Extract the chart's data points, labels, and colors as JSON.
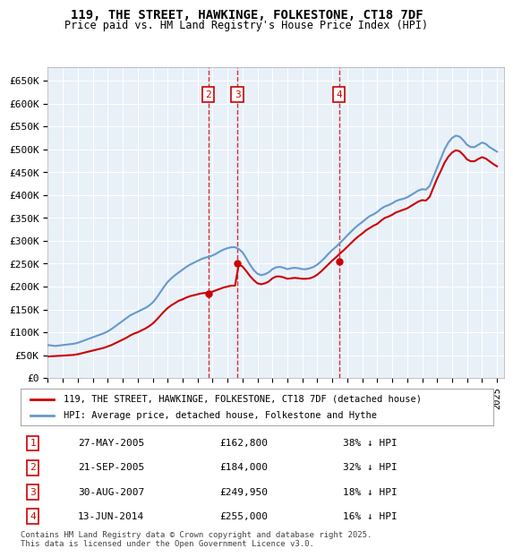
{
  "title_line1": "119, THE STREET, HAWKINGE, FOLKESTONE, CT18 7DF",
  "title_line2": "Price paid vs. HM Land Registry's House Price Index (HPI)",
  "ylabel": "",
  "ylim": [
    0,
    680000
  ],
  "yticks": [
    0,
    50000,
    100000,
    150000,
    200000,
    250000,
    300000,
    350000,
    400000,
    450000,
    500000,
    550000,
    600000,
    650000
  ],
  "ytick_labels": [
    "£0",
    "£50K",
    "£100K",
    "£150K",
    "£200K",
    "£250K",
    "£300K",
    "£350K",
    "£400K",
    "£450K",
    "£500K",
    "£550K",
    "£600K",
    "£650K"
  ],
  "xlim_start": 1995.0,
  "xlim_end": 2025.5,
  "background_color": "#ffffff",
  "plot_background": "#e8f0f8",
  "grid_color": "#ffffff",
  "hpi_color": "#6699cc",
  "price_color": "#cc0000",
  "transaction_color": "#cc0000",
  "annotation_box_color": "#cc0000",
  "dashed_line_color": "#cc0000",
  "legend_box_color": "#dddddd",
  "footer_text": "Contains HM Land Registry data © Crown copyright and database right 2025.\nThis data is licensed under the Open Government Licence v3.0.",
  "transactions": [
    {
      "label": "1",
      "date": "27-MAY-2005",
      "price": 162800,
      "pct": "38%",
      "year": 2005.4,
      "show_on_chart": false
    },
    {
      "label": "2",
      "date": "21-SEP-2005",
      "price": 184000,
      "pct": "32%",
      "year": 2005.72,
      "show_on_chart": true
    },
    {
      "label": "3",
      "date": "30-AUG-2007",
      "price": 249950,
      "pct": "18%",
      "year": 2007.66,
      "show_on_chart": true
    },
    {
      "label": "4",
      "date": "13-JUN-2014",
      "price": 255000,
      "pct": "16%",
      "year": 2014.45,
      "show_on_chart": true
    }
  ],
  "hpi_data_x": [
    1995.0,
    1995.25,
    1995.5,
    1995.75,
    1996.0,
    1996.25,
    1996.5,
    1996.75,
    1997.0,
    1997.25,
    1997.5,
    1997.75,
    1998.0,
    1998.25,
    1998.5,
    1998.75,
    1999.0,
    1999.25,
    1999.5,
    1999.75,
    2000.0,
    2000.25,
    2000.5,
    2000.75,
    2001.0,
    2001.25,
    2001.5,
    2001.75,
    2002.0,
    2002.25,
    2002.5,
    2002.75,
    2003.0,
    2003.25,
    2003.5,
    2003.75,
    2004.0,
    2004.25,
    2004.5,
    2004.75,
    2005.0,
    2005.25,
    2005.5,
    2005.75,
    2006.0,
    2006.25,
    2006.5,
    2006.75,
    2007.0,
    2007.25,
    2007.5,
    2007.75,
    2008.0,
    2008.25,
    2008.5,
    2008.75,
    2009.0,
    2009.25,
    2009.5,
    2009.75,
    2010.0,
    2010.25,
    2010.5,
    2010.75,
    2011.0,
    2011.25,
    2011.5,
    2011.75,
    2012.0,
    2012.25,
    2012.5,
    2012.75,
    2013.0,
    2013.25,
    2013.5,
    2013.75,
    2014.0,
    2014.25,
    2014.5,
    2014.75,
    2015.0,
    2015.25,
    2015.5,
    2015.75,
    2016.0,
    2016.25,
    2016.5,
    2016.75,
    2017.0,
    2017.25,
    2017.5,
    2017.75,
    2018.0,
    2018.25,
    2018.5,
    2018.75,
    2019.0,
    2019.25,
    2019.5,
    2019.75,
    2020.0,
    2020.25,
    2020.5,
    2020.75,
    2021.0,
    2021.25,
    2021.5,
    2021.75,
    2022.0,
    2022.25,
    2022.5,
    2022.75,
    2023.0,
    2023.25,
    2023.5,
    2023.75,
    2024.0,
    2024.25,
    2024.5,
    2024.75,
    2025.0
  ],
  "hpi_data_y": [
    72000,
    71000,
    70000,
    71000,
    72000,
    73000,
    74000,
    75000,
    77000,
    80000,
    83000,
    86000,
    89000,
    92000,
    95000,
    98000,
    102000,
    107000,
    113000,
    119000,
    125000,
    131000,
    137000,
    141000,
    145000,
    149000,
    153000,
    158000,
    165000,
    175000,
    187000,
    199000,
    210000,
    218000,
    225000,
    231000,
    237000,
    243000,
    248000,
    252000,
    256000,
    260000,
    263000,
    265000,
    268000,
    272000,
    277000,
    281000,
    284000,
    286000,
    286000,
    282000,
    275000,
    262000,
    248000,
    236000,
    228000,
    225000,
    227000,
    231000,
    238000,
    242000,
    243000,
    241000,
    238000,
    240000,
    241000,
    240000,
    238000,
    238000,
    240000,
    243000,
    248000,
    255000,
    263000,
    272000,
    280000,
    287000,
    295000,
    303000,
    312000,
    320000,
    328000,
    335000,
    341000,
    348000,
    354000,
    358000,
    363000,
    370000,
    375000,
    378000,
    382000,
    387000,
    390000,
    392000,
    395000,
    400000,
    405000,
    410000,
    413000,
    412000,
    420000,
    440000,
    460000,
    480000,
    500000,
    515000,
    525000,
    530000,
    528000,
    520000,
    510000,
    505000,
    505000,
    510000,
    515000,
    512000,
    505000,
    500000,
    495000
  ],
  "price_data_x": [
    1995.0,
    1995.25,
    1995.5,
    1995.75,
    1996.0,
    1996.25,
    1996.5,
    1996.75,
    1997.0,
    1997.25,
    1997.5,
    1997.75,
    1998.0,
    1998.25,
    1998.5,
    1998.75,
    1999.0,
    1999.25,
    1999.5,
    1999.75,
    2000.0,
    2000.25,
    2000.5,
    2000.75,
    2001.0,
    2001.25,
    2001.5,
    2001.75,
    2002.0,
    2002.25,
    2002.5,
    2002.75,
    2003.0,
    2003.25,
    2003.5,
    2003.75,
    2004.0,
    2004.25,
    2004.5,
    2004.75,
    2005.0,
    2005.25,
    2005.5,
    2005.75,
    2006.0,
    2006.25,
    2006.5,
    2006.75,
    2007.0,
    2007.25,
    2007.5,
    2007.75,
    2008.0,
    2008.25,
    2008.5,
    2008.75,
    2009.0,
    2009.25,
    2009.5,
    2009.75,
    2010.0,
    2010.25,
    2010.5,
    2010.75,
    2011.0,
    2011.25,
    2011.5,
    2011.75,
    2012.0,
    2012.25,
    2012.5,
    2012.75,
    2013.0,
    2013.25,
    2013.5,
    2013.75,
    2014.0,
    2014.25,
    2014.5,
    2014.75,
    2015.0,
    2015.25,
    2015.5,
    2015.75,
    2016.0,
    2016.25,
    2016.5,
    2016.75,
    2017.0,
    2017.25,
    2017.5,
    2017.75,
    2018.0,
    2018.25,
    2018.5,
    2018.75,
    2019.0,
    2019.25,
    2019.5,
    2019.75,
    2020.0,
    2020.25,
    2020.5,
    2020.75,
    2021.0,
    2021.25,
    2021.5,
    2021.75,
    2022.0,
    2022.25,
    2022.5,
    2022.75,
    2023.0,
    2023.25,
    2023.5,
    2023.75,
    2024.0,
    2024.25,
    2024.5,
    2024.75,
    2025.0
  ],
  "price_data_y": [
    47000,
    47500,
    48000,
    48500,
    49000,
    49500,
    50000,
    50500,
    52000,
    54000,
    56000,
    58000,
    60000,
    62000,
    64000,
    66000,
    69000,
    72000,
    76000,
    80000,
    84000,
    88000,
    93000,
    97000,
    100000,
    104000,
    108000,
    113000,
    119000,
    127000,
    136000,
    145000,
    153000,
    159000,
    164000,
    169000,
    172000,
    176000,
    179000,
    181000,
    183000,
    185000,
    186000,
    187000,
    189000,
    192000,
    195000,
    198000,
    200000,
    202000,
    202000,
    248000,
    244000,
    234000,
    223000,
    214000,
    207000,
    205000,
    207000,
    211000,
    218000,
    222000,
    222000,
    220000,
    217000,
    218000,
    219000,
    218000,
    217000,
    217000,
    218000,
    221000,
    226000,
    233000,
    241000,
    249000,
    257000,
    264000,
    272000,
    279000,
    287000,
    295000,
    303000,
    310000,
    316000,
    323000,
    328000,
    333000,
    337000,
    344000,
    350000,
    353000,
    357000,
    362000,
    365000,
    368000,
    371000,
    376000,
    381000,
    386000,
    389000,
    388000,
    396000,
    416000,
    436000,
    453000,
    471000,
    484000,
    493000,
    498000,
    496000,
    488000,
    478000,
    474000,
    474000,
    479000,
    483000,
    480000,
    474000,
    468000,
    463000
  ]
}
